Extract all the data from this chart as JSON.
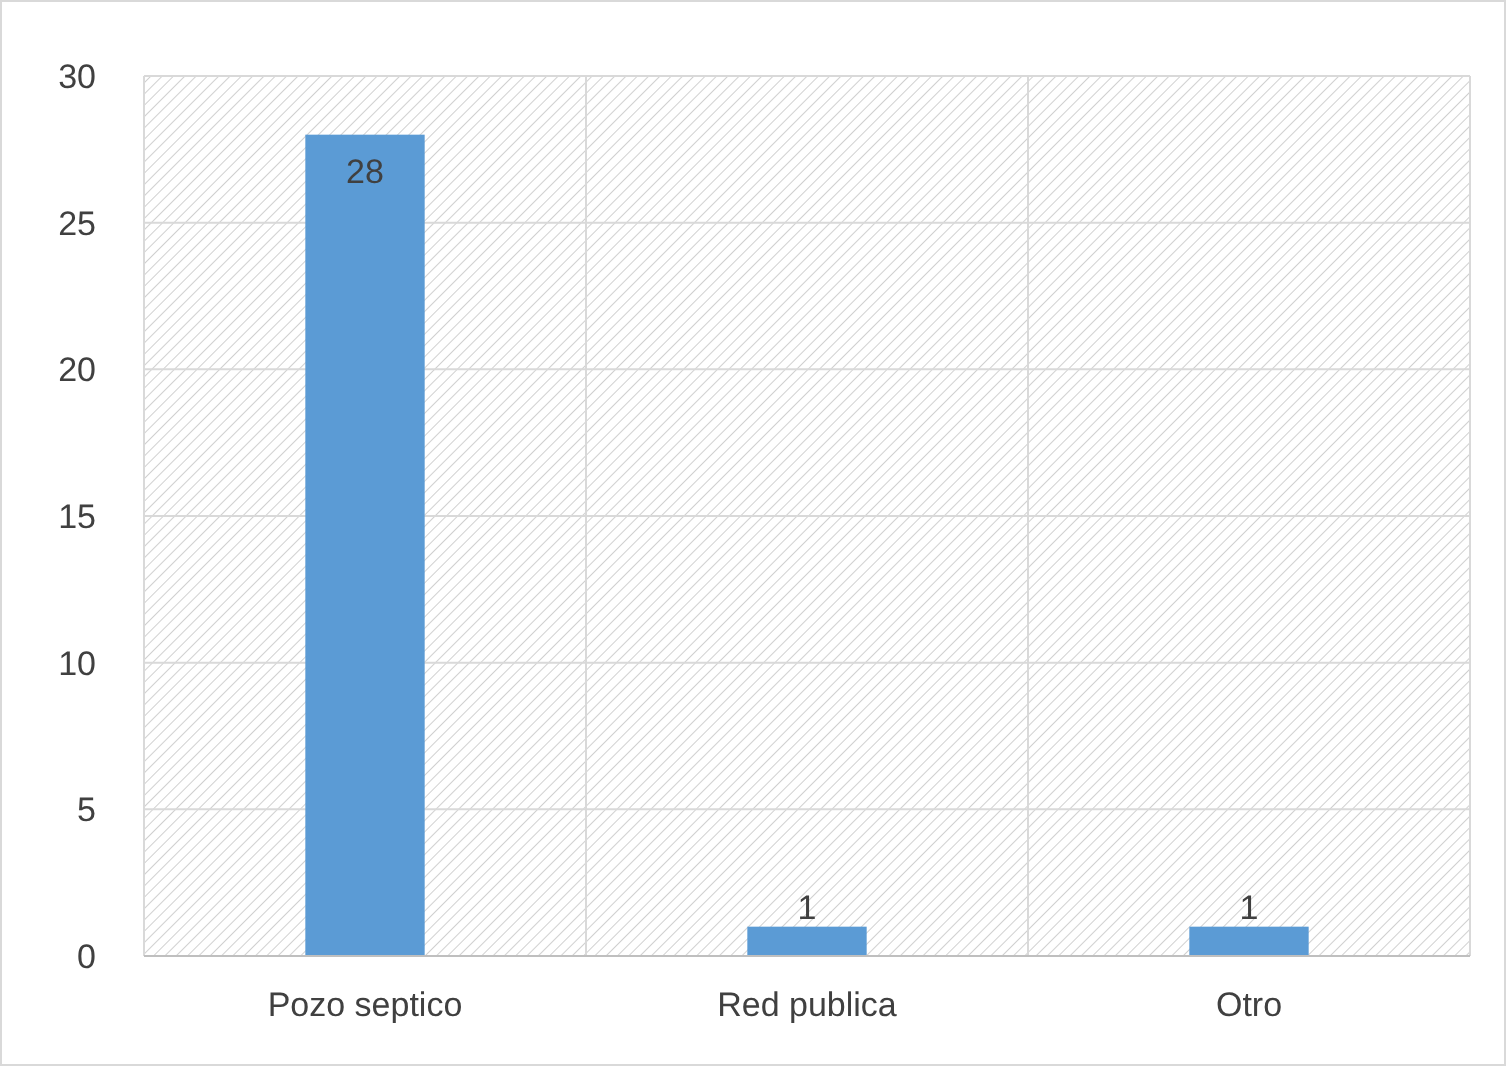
{
  "chart_data": {
    "type": "bar",
    "categories": [
      "Pozo septico",
      "Red publica",
      "Otro"
    ],
    "values": [
      28,
      1,
      1
    ],
    "color": "#5b9bd5",
    "ylim": [
      0,
      30
    ],
    "yticks": [
      0,
      5,
      10,
      15,
      20,
      25,
      30
    ],
    "grid": true,
    "data_labels": true
  }
}
